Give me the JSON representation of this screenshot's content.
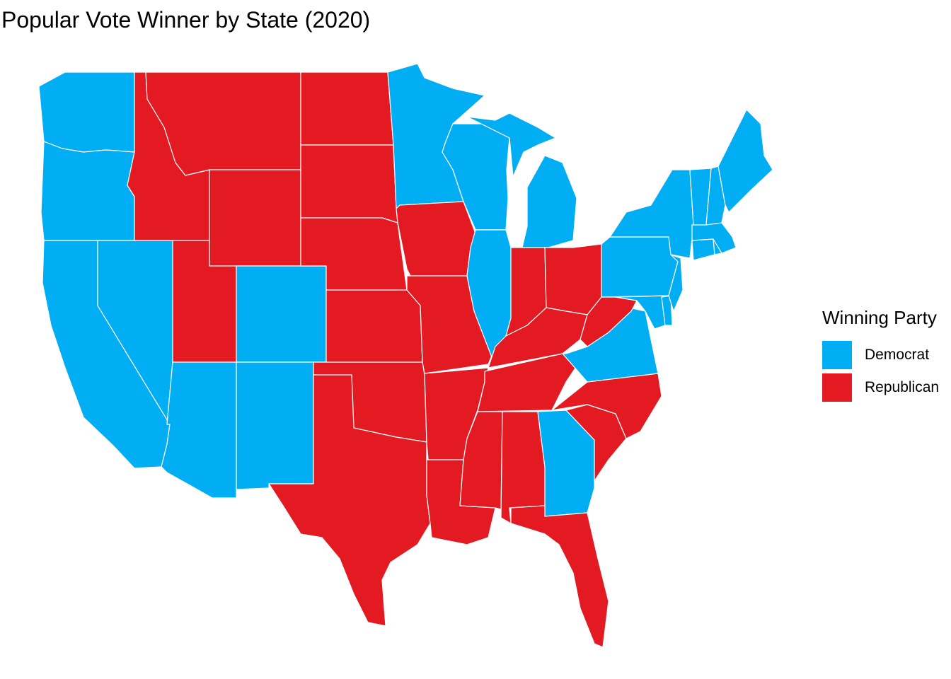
{
  "title": "Popular Vote Winner by State (2020)",
  "legend": {
    "title": "Winning Party",
    "items": [
      {
        "label": "Democrat",
        "color": "#02AEF3"
      },
      {
        "label": "Republican",
        "color": "#E41A22"
      }
    ]
  },
  "states": {
    "WA": "Democrat",
    "OR": "Democrat",
    "CA": "Democrat",
    "NV": "Democrat",
    "ID": "Republican",
    "MT": "Republican",
    "WY": "Republican",
    "UT": "Republican",
    "AZ": "Democrat",
    "CO": "Democrat",
    "NM": "Democrat",
    "ND": "Republican",
    "SD": "Republican",
    "NE": "Republican",
    "KS": "Republican",
    "OK": "Republican",
    "TX": "Republican",
    "MN": "Democrat",
    "IA": "Republican",
    "MO": "Republican",
    "AR": "Republican",
    "LA": "Republican",
    "WI": "Democrat",
    "IL": "Democrat",
    "MI": "Democrat",
    "IN": "Republican",
    "OH": "Republican",
    "KY": "Republican",
    "TN": "Republican",
    "MS": "Republican",
    "AL": "Republican",
    "GA": "Democrat",
    "FL": "Republican",
    "SC": "Republican",
    "NC": "Republican",
    "VA": "Democrat",
    "WV": "Republican",
    "MD": "Democrat",
    "DE": "Democrat",
    "PA": "Democrat",
    "NJ": "Democrat",
    "NY": "Democrat",
    "CT": "Democrat",
    "RI": "Democrat",
    "MA": "Democrat",
    "VT": "Democrat",
    "NH": "Democrat",
    "ME": "Democrat"
  }
}
